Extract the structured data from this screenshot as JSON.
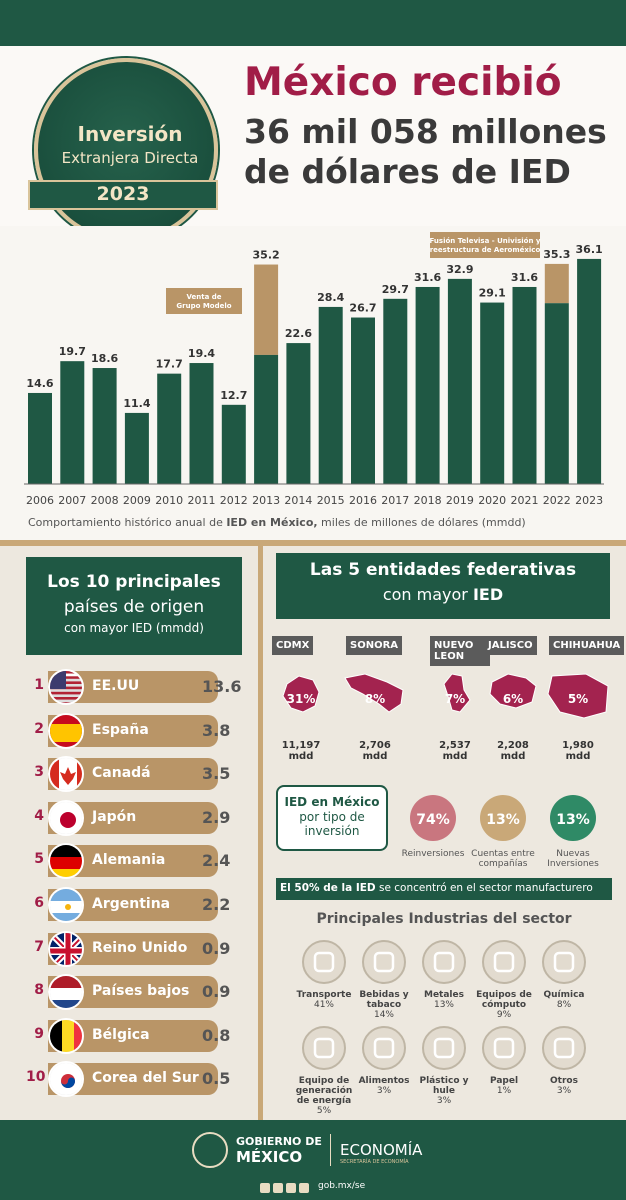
{
  "header": {
    "badge_line1": "Inversión",
    "badge_line2": "Extranjera Directa",
    "badge_year": "2023",
    "headline_line1": "México recibió",
    "headline_line2": "36 mil 058 millones",
    "headline_line3": "de dólares de IED"
  },
  "chart_data": {
    "type": "bar",
    "categories": [
      "2006",
      "2007",
      "2008",
      "2009",
      "2010",
      "2011",
      "2012",
      "2013",
      "2014",
      "2015",
      "2016",
      "2017",
      "2018",
      "2019",
      "2020",
      "2021",
      "2022",
      "2023"
    ],
    "values": [
      14.6,
      19.7,
      18.6,
      11.4,
      17.7,
      19.4,
      12.7,
      35.2,
      22.6,
      28.4,
      26.7,
      29.7,
      31.6,
      32.9,
      29.1,
      31.6,
      35.3,
      36.1
    ],
    "extraordinary": [
      {
        "year": "2013",
        "value": 35.2,
        "base": 20.7,
        "note": "Venta de Grupo Modelo"
      },
      {
        "year": "2022",
        "value": 35.3,
        "base": 29.0,
        "note": "Fusión Televisa - Univisión y reestructura de Aeroméxico"
      }
    ],
    "ylim": [
      0,
      40
    ],
    "caption_prefix": "Comportamiento histórico anual de ",
    "caption_bold": "IED en México,",
    "caption_suffix": " miles de millones de dólares (mmdd)",
    "colors": {
      "bar": "#1f5844",
      "extraordinary": "#b99567"
    }
  },
  "countries": {
    "title_line1": "Los 10 principales",
    "title_line2": "países de origen",
    "title_line3": "con mayor IED (mmdd)",
    "items": [
      {
        "rank": "1",
        "name": "EE.UU",
        "value": "13.6",
        "flag": "us-flag"
      },
      {
        "rank": "2",
        "name": "España",
        "value": "3.8",
        "flag": "spain-flag"
      },
      {
        "rank": "3",
        "name": "Canadá",
        "value": "3.5",
        "flag": "canada-flag"
      },
      {
        "rank": "4",
        "name": "Japón",
        "value": "2.9",
        "flag": "japan-flag"
      },
      {
        "rank": "5",
        "name": "Alemania",
        "value": "2.4",
        "flag": "germany-flag"
      },
      {
        "rank": "6",
        "name": "Argentina",
        "value": "2.2",
        "flag": "argentina-flag"
      },
      {
        "rank": "7",
        "name": "Reino Unido",
        "value": "0.9",
        "flag": "uk-flag"
      },
      {
        "rank": "8",
        "name": "Países bajos",
        "value": "0.9",
        "flag": "netherlands-flag"
      },
      {
        "rank": "9",
        "name": "Bélgica",
        "value": "0.8",
        "flag": "belgium-flag"
      },
      {
        "rank": "10",
        "name": "Corea del Sur",
        "value": "0.5",
        "flag": "korea-flag"
      }
    ]
  },
  "states": {
    "title_line1": "Las 5 entidades federativas",
    "title_line2_prefix": "con mayor ",
    "title_line2_bold": "IED",
    "items": [
      {
        "name": "CDMX",
        "pct": "31%",
        "value": "11,197",
        "unit": "mdd"
      },
      {
        "name": "SONORA",
        "pct": "8%",
        "value": "2,706",
        "unit": "mdd"
      },
      {
        "name": "NUEVO LEON",
        "pct": "7%",
        "value": "2,537",
        "unit": "mdd"
      },
      {
        "name": "JALISCO",
        "pct": "6%",
        "value": "2,208",
        "unit": "mdd"
      },
      {
        "name": "CHIHUAHUA",
        "pct": "5%",
        "value": "1,980",
        "unit": "mdd"
      }
    ]
  },
  "investment_type": {
    "title_line1": "IED en México",
    "title_line2": "por tipo de",
    "title_line3": "inversión",
    "items": [
      {
        "pct": "74%",
        "label": "Reinversiones",
        "color": "#c9767f"
      },
      {
        "pct": "13%",
        "label": "Cuentas entre compañías",
        "color": "#c9a878"
      },
      {
        "pct": "13%",
        "label": "Nuevas Inversiones",
        "color": "#2f8a66"
      }
    ]
  },
  "industries": {
    "banner_bold": "El 50% de la IED",
    "banner_rest": " se concentró en el sector manufacturero",
    "title": "Principales Industrias del sector",
    "items": [
      {
        "name": "Transporte",
        "pct": "41%",
        "icon": "bus-icon"
      },
      {
        "name": "Bebidas y tabaco",
        "pct": "14%",
        "icon": "bottle-glass-icon"
      },
      {
        "name": "Metales",
        "pct": "13%",
        "icon": "mine-cart-icon"
      },
      {
        "name": "Equipos de cómputo",
        "pct": "9%",
        "icon": "laptop-icon"
      },
      {
        "name": "Química",
        "pct": "8%",
        "icon": "flask-icon"
      },
      {
        "name": "Equipo de generación de energía",
        "pct": "5%",
        "icon": "plug-icon"
      },
      {
        "name": "Alimentos",
        "pct": "3%",
        "icon": "fish-icon"
      },
      {
        "name": "Plástico y hule",
        "pct": "3%",
        "icon": "plastic-bottle-icon"
      },
      {
        "name": "Papel",
        "pct": "1%",
        "icon": "paper-icon"
      },
      {
        "name": "Otros",
        "pct": "3%",
        "icon": "gear-icon"
      }
    ]
  },
  "footer": {
    "gob_line1": "GOBIERNO DE",
    "gob_line2": "MÉXICO",
    "eco_line1": "ECONOMÍA",
    "eco_line2": "SECRETARÍA DE ECONOMÍA",
    "url": "gob.mx/se",
    "social_icons": [
      "facebook-icon",
      "twitter-icon",
      "instagram-icon",
      "youtube-icon"
    ]
  }
}
